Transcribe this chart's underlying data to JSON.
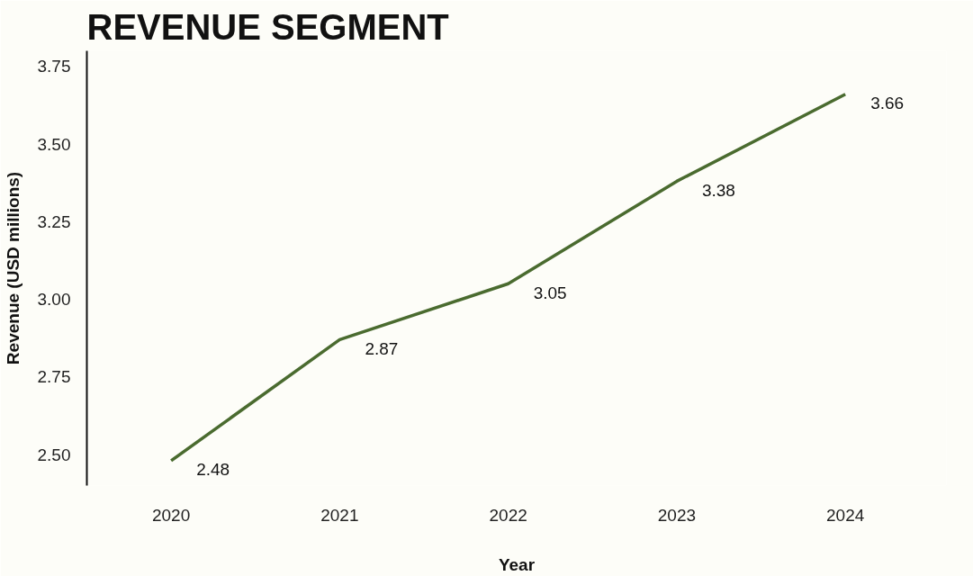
{
  "chart_data": {
    "type": "line",
    "title": "REVENUE SEGMENT",
    "xlabel": "Year",
    "ylabel": "Revenue (USD millions)",
    "categories": [
      "2020",
      "2021",
      "2022",
      "2023",
      "2024"
    ],
    "series": [
      {
        "color": "#4a6b2f",
        "values": [
          2.48,
          2.87,
          3.05,
          3.38,
          3.66
        ]
      }
    ],
    "ylim": [
      2.4,
      3.8
    ],
    "yticks": [
      {
        "value": 2.5,
        "label": "2.50"
      },
      {
        "value": 2.75,
        "label": "2.75"
      },
      {
        "value": 3.0,
        "label": "3.00"
      },
      {
        "value": 3.25,
        "label": "3.25"
      },
      {
        "value": 3.5,
        "label": "3.50"
      },
      {
        "value": 3.75,
        "label": "3.75"
      }
    ],
    "grid": false,
    "marker": "none",
    "line_style": "solid",
    "data_labels": true
  }
}
